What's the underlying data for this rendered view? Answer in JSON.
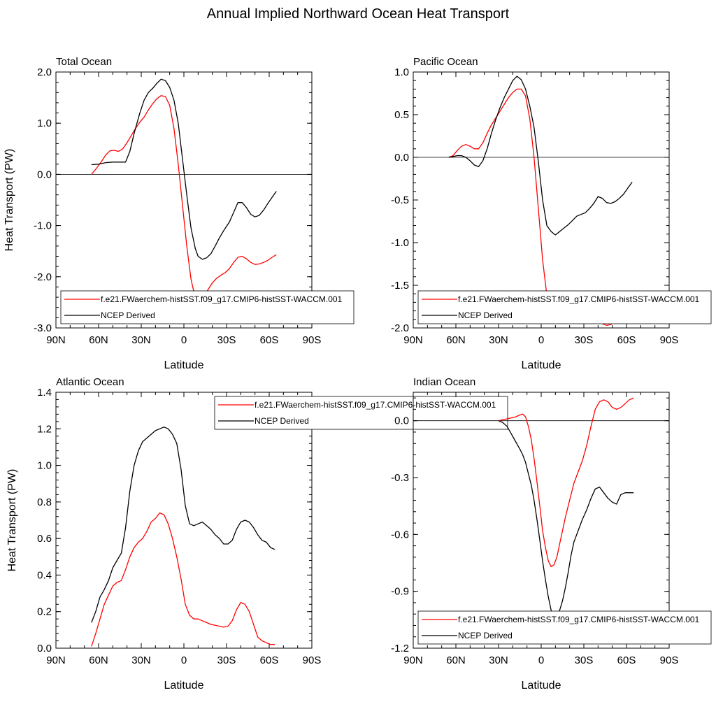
{
  "figure": {
    "title": "Annual Implied Northward Ocean Heat Transport"
  },
  "colors": {
    "model": "#ff0000",
    "ncep": "#000000",
    "zero_line": "#000000"
  },
  "chart_data": [
    {
      "type": "line",
      "panel_title": "Total Ocean",
      "xlabel": "Latitude",
      "ylabel": "Heat Transport (PW)",
      "xlim": [
        90,
        -90
      ],
      "ylim": [
        -3.0,
        2.0
      ],
      "xticks": [
        90,
        60,
        30,
        0,
        -30,
        -60,
        -90
      ],
      "xtick_labels": [
        "90N",
        "60N",
        "30N",
        "0",
        "30S",
        "60S",
        "90S"
      ],
      "yticks": [
        -3.0,
        -2.0,
        -1.0,
        0.0,
        1.0,
        2.0
      ],
      "ytick_labels": [
        "-3.0",
        "-2.0",
        "-1.0",
        "0.0",
        "1.0",
        "2.0"
      ],
      "zero_line": true,
      "legend": {
        "placement": "bottom",
        "entries": [
          "f.e21.FWaerchem-histSST.f09_g17.CMIP6-histSST-WACCM.001",
          "NCEP Derived"
        ]
      },
      "series": [
        {
          "name": "f.e21.FWaerchem-histSST.f09_g17.CMIP6-histSST-WACCM.001",
          "color": "#ff0000",
          "x": [
            65,
            62,
            58,
            55,
            52,
            49,
            46,
            43,
            40,
            37,
            34,
            31,
            28,
            25,
            22,
            19,
            16,
            13,
            10,
            7,
            4,
            1,
            -2,
            -5,
            -8,
            -11,
            -14,
            -17,
            -20,
            -23,
            -26,
            -29,
            -32,
            -35,
            -38,
            -41,
            -44,
            -47,
            -50,
            -53,
            -56,
            -59,
            -62,
            -65
          ],
          "y": [
            0.0,
            0.1,
            0.25,
            0.38,
            0.46,
            0.47,
            0.45,
            0.5,
            0.62,
            0.76,
            0.9,
            1.02,
            1.12,
            1.26,
            1.38,
            1.48,
            1.54,
            1.52,
            1.35,
            0.9,
            0.2,
            -0.6,
            -1.4,
            -2.05,
            -2.42,
            -2.5,
            -2.4,
            -2.25,
            -2.12,
            -2.03,
            -1.97,
            -1.92,
            -1.84,
            -1.72,
            -1.62,
            -1.6,
            -1.65,
            -1.72,
            -1.76,
            -1.75,
            -1.72,
            -1.68,
            -1.62,
            -1.57
          ]
        },
        {
          "name": "NCEP Derived",
          "color": "#000000",
          "x": [
            65,
            60,
            55,
            50,
            45,
            41,
            38,
            35,
            31,
            28,
            25,
            22,
            19,
            16,
            13,
            10,
            7,
            4,
            1,
            -2,
            -5,
            -8,
            -10,
            -13,
            -16,
            -19,
            -22,
            -25,
            -28,
            -32,
            -35,
            -38,
            -41,
            -44,
            -47,
            -50,
            -53,
            -56,
            -59,
            -62,
            -65
          ],
          "y": [
            0.19,
            0.2,
            0.23,
            0.24,
            0.24,
            0.24,
            0.45,
            0.8,
            1.2,
            1.45,
            1.6,
            1.68,
            1.78,
            1.86,
            1.83,
            1.7,
            1.45,
            1.0,
            0.3,
            -0.4,
            -1.05,
            -1.45,
            -1.6,
            -1.66,
            -1.63,
            -1.55,
            -1.4,
            -1.24,
            -1.1,
            -0.93,
            -0.74,
            -0.55,
            -0.55,
            -0.65,
            -0.78,
            -0.83,
            -0.8,
            -0.7,
            -0.57,
            -0.45,
            -0.33
          ]
        }
      ]
    },
    {
      "type": "line",
      "panel_title": "Pacific Ocean",
      "xlabel": "Latitude",
      "ylabel": "",
      "xlim": [
        90,
        -90
      ],
      "ylim": [
        -2.0,
        1.0
      ],
      "xticks": [
        90,
        60,
        30,
        0,
        -30,
        -60,
        -90
      ],
      "xtick_labels": [
        "90N",
        "60N",
        "30N",
        "0",
        "30S",
        "60S",
        "90S"
      ],
      "yticks": [
        -2.0,
        -1.5,
        -1.0,
        -0.5,
        0.0,
        0.5,
        1.0
      ],
      "ytick_labels": [
        "-2.0",
        "-1.5",
        "-1.0",
        "-0.5",
        "0.0",
        "0.5",
        "1.0"
      ],
      "zero_line": true,
      "legend": {
        "placement": "bottom",
        "entries": [
          "f.e21.FWaerchem-histSST.f09_g17.CMIP6-histSST-WACCM.001",
          "NCEP Derived"
        ]
      },
      "series": [
        {
          "name": "f.e21.FWaerchem-histSST.f09_g17.CMIP6-histSST-WACCM.001",
          "color": "#ff0000",
          "x": [
            65,
            62,
            59,
            56,
            53,
            50,
            47,
            44,
            41,
            38,
            35,
            32,
            29,
            26,
            23,
            20,
            17,
            14,
            11,
            8,
            5,
            2,
            -1,
            -4,
            -7,
            -10,
            -13,
            -16,
            -19,
            -22,
            -25,
            -28,
            -31,
            -34,
            -37,
            -40,
            -43,
            -46,
            -49,
            -52,
            -55,
            -58,
            -61,
            -64
          ],
          "y": [
            0.0,
            0.02,
            0.08,
            0.13,
            0.15,
            0.13,
            0.1,
            0.1,
            0.17,
            0.28,
            0.38,
            0.46,
            0.54,
            0.62,
            0.7,
            0.76,
            0.8,
            0.8,
            0.72,
            0.45,
            0.0,
            -0.6,
            -1.2,
            -1.62,
            -1.86,
            -1.93,
            -1.93,
            -1.9,
            -1.86,
            -1.83,
            -1.82,
            -1.82,
            -1.84,
            -1.87,
            -1.9,
            -1.92,
            -1.95,
            -1.97,
            -1.96,
            -1.92,
            -1.88,
            -1.85,
            -1.8,
            -1.73
          ]
        },
        {
          "name": "NCEP Derived",
          "color": "#000000",
          "x": [
            65,
            62,
            59,
            56,
            53,
            50,
            47,
            44,
            41,
            38,
            35,
            32,
            29,
            26,
            23,
            20,
            17,
            14,
            11,
            8,
            5,
            2,
            -1,
            -4,
            -7,
            -10,
            -13,
            -16,
            -19,
            -22,
            -25,
            -28,
            -31,
            -34,
            -37,
            -40,
            -43,
            -46,
            -49,
            -52,
            -55,
            -58,
            -61,
            -64
          ],
          "y": [
            0.0,
            0.01,
            0.02,
            0.02,
            0.0,
            -0.04,
            -0.09,
            -0.11,
            -0.04,
            0.1,
            0.28,
            0.44,
            0.58,
            0.7,
            0.8,
            0.9,
            0.95,
            0.91,
            0.8,
            0.6,
            0.35,
            -0.05,
            -0.5,
            -0.8,
            -0.87,
            -0.91,
            -0.87,
            -0.83,
            -0.79,
            -0.74,
            -0.69,
            -0.67,
            -0.65,
            -0.6,
            -0.54,
            -0.46,
            -0.48,
            -0.53,
            -0.54,
            -0.52,
            -0.48,
            -0.43,
            -0.36,
            -0.29
          ]
        }
      ]
    },
    {
      "type": "line",
      "panel_title": "Atlantic Ocean",
      "xlabel": "Latitude",
      "ylabel": "Heat Transport (PW)",
      "xlim": [
        90,
        -90
      ],
      "ylim": [
        0.0,
        1.4
      ],
      "xticks": [
        90,
        60,
        30,
        0,
        -30,
        -60,
        -90
      ],
      "xtick_labels": [
        "90N",
        "60N",
        "30N",
        "0",
        "30S",
        "60S",
        "90S"
      ],
      "yticks": [
        0.0,
        0.2,
        0.4,
        0.6,
        0.8,
        1.0,
        1.2,
        1.4
      ],
      "ytick_labels": [
        "0.0",
        "0.2",
        "0.4",
        "0.6",
        "0.8",
        "1.0",
        "1.2",
        "1.4"
      ],
      "zero_line": false,
      "legend": {
        "placement": "top-right",
        "entries": [
          "f.e21.FWaerchem-histSST.f09_g17.CMIP6-histSST-WACCM.001",
          "NCEP Derived"
        ]
      },
      "series": [
        {
          "name": "f.e21.FWaerchem-histSST.f09_g17.CMIP6-histSST-WACCM.001",
          "color": "#ff0000",
          "x": [
            65,
            62,
            59,
            56,
            53,
            50,
            47,
            44,
            41,
            38,
            35,
            32,
            29,
            26,
            23,
            20,
            17,
            14,
            11,
            8,
            5,
            2,
            -1,
            -4,
            -7,
            -10,
            -13,
            -16,
            -19,
            -22,
            -25,
            -28,
            -31,
            -34,
            -37,
            -40,
            -43,
            -46,
            -49,
            -52,
            -55,
            -58,
            -61,
            -64
          ],
          "y": [
            0.01,
            0.08,
            0.16,
            0.24,
            0.29,
            0.34,
            0.36,
            0.37,
            0.43,
            0.5,
            0.55,
            0.58,
            0.6,
            0.64,
            0.69,
            0.71,
            0.74,
            0.73,
            0.68,
            0.6,
            0.5,
            0.38,
            0.24,
            0.18,
            0.16,
            0.16,
            0.15,
            0.14,
            0.13,
            0.125,
            0.12,
            0.115,
            0.12,
            0.15,
            0.21,
            0.25,
            0.24,
            0.2,
            0.13,
            0.06,
            0.04,
            0.03,
            0.02,
            0.02
          ]
        },
        {
          "name": "NCEP Derived",
          "color": "#000000",
          "x": [
            65,
            62,
            59,
            56,
            53,
            50,
            47,
            44,
            41,
            38,
            35,
            32,
            29,
            26,
            23,
            20,
            17,
            14,
            11,
            8,
            5,
            2,
            -1,
            -4,
            -7,
            -10,
            -13,
            -16,
            -19,
            -22,
            -25,
            -28,
            -31,
            -34,
            -37,
            -40,
            -43,
            -46,
            -49,
            -52,
            -55,
            -58,
            -61,
            -64
          ],
          "y": [
            0.14,
            0.2,
            0.28,
            0.32,
            0.37,
            0.44,
            0.48,
            0.52,
            0.66,
            0.86,
            1.0,
            1.08,
            1.13,
            1.15,
            1.17,
            1.19,
            1.2,
            1.21,
            1.2,
            1.17,
            1.12,
            0.98,
            0.78,
            0.68,
            0.67,
            0.68,
            0.69,
            0.67,
            0.65,
            0.62,
            0.6,
            0.57,
            0.57,
            0.59,
            0.65,
            0.69,
            0.7,
            0.69,
            0.66,
            0.62,
            0.59,
            0.58,
            0.55,
            0.54
          ]
        }
      ]
    },
    {
      "type": "line",
      "panel_title": "Indian Ocean",
      "xlabel": "Latitude",
      "ylabel": "",
      "xlim": [
        90,
        -90
      ],
      "ylim": [
        -1.2,
        0.15
      ],
      "xticks": [
        90,
        60,
        30,
        0,
        -30,
        -60,
        -90
      ],
      "xtick_labels": [
        "90N",
        "60N",
        "30N",
        "0",
        "30S",
        "60S",
        "90S"
      ],
      "yticks": [
        -1.2,
        -0.9,
        -0.6,
        -0.3,
        0.0
      ],
      "ytick_labels": [
        "-1.2",
        "-0.9",
        "-0.6",
        "-0.3",
        "0.0"
      ],
      "zero_line": true,
      "legend": {
        "placement": "bottom",
        "entries": [
          "f.e21.FWaerchem-histSST.f09_g17.CMIP6-histSST-WACCM.001",
          "NCEP Derived"
        ]
      },
      "series": [
        {
          "name": "f.e21.FWaerchem-histSST.f09_g17.CMIP6-histSST-WACCM.001",
          "color": "#ff0000",
          "x": [
            30,
            27,
            24,
            21,
            18,
            15,
            13,
            11,
            9,
            7,
            5,
            3,
            1,
            -1,
            -3,
            -5,
            -7,
            -9,
            -11,
            -13,
            -15,
            -17,
            -19,
            -21,
            -23,
            -26,
            -29,
            -32,
            -35,
            -38,
            -41,
            -44,
            -47,
            -50,
            -53,
            -56,
            -59,
            -62,
            -65
          ],
          "y": [
            0.0,
            0.005,
            0.01,
            0.015,
            0.02,
            0.03,
            0.035,
            0.02,
            -0.03,
            -0.1,
            -0.2,
            -0.32,
            -0.45,
            -0.58,
            -0.67,
            -0.74,
            -0.77,
            -0.76,
            -0.72,
            -0.65,
            -0.58,
            -0.51,
            -0.45,
            -0.39,
            -0.33,
            -0.27,
            -0.21,
            -0.13,
            -0.03,
            0.06,
            0.1,
            0.11,
            0.1,
            0.07,
            0.06,
            0.07,
            0.09,
            0.11,
            0.12
          ]
        },
        {
          "name": "NCEP Derived",
          "color": "#000000",
          "x": [
            30,
            27,
            24,
            21,
            18,
            15,
            13,
            11,
            9,
            7,
            5,
            3,
            1,
            -1,
            -3,
            -5,
            -7,
            -9,
            -11,
            -13,
            -15,
            -17,
            -19,
            -21,
            -23,
            -26,
            -29,
            -32,
            -35,
            -38,
            -41,
            -44,
            -47,
            -50,
            -53,
            -56,
            -59,
            -62,
            -65
          ],
          "y": [
            0.0,
            -0.01,
            -0.03,
            -0.07,
            -0.11,
            -0.15,
            -0.18,
            -0.22,
            -0.28,
            -0.34,
            -0.42,
            -0.52,
            -0.63,
            -0.74,
            -0.84,
            -0.93,
            -1.0,
            -1.04,
            -1.03,
            -1.0,
            -0.95,
            -0.88,
            -0.8,
            -0.71,
            -0.64,
            -0.58,
            -0.52,
            -0.47,
            -0.41,
            -0.36,
            -0.35,
            -0.38,
            -0.41,
            -0.43,
            -0.44,
            -0.39,
            -0.38,
            -0.38,
            -0.38
          ]
        }
      ]
    }
  ]
}
